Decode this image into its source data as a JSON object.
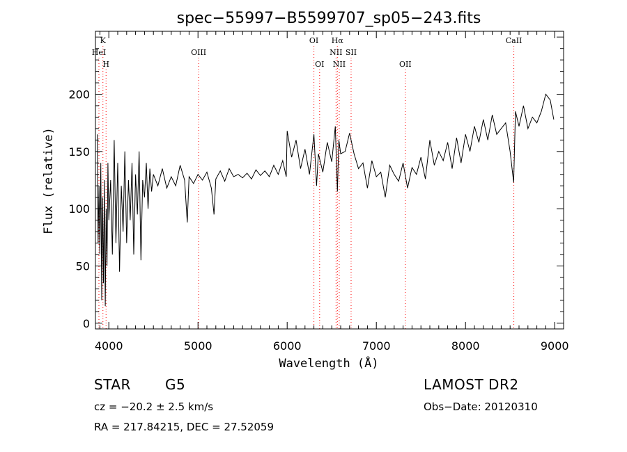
{
  "chart_data": {
    "type": "line",
    "title": "spec−55997−B5599707_sp05−243.fits",
    "xlabel": "Wavelength (Å)",
    "ylabel": "Flux (relative)",
    "xlim": [
      3850,
      9100
    ],
    "ylim": [
      -5,
      255
    ],
    "xticks": [
      4000,
      5000,
      6000,
      7000,
      8000,
      9000
    ],
    "yticks": [
      0,
      50,
      100,
      150,
      200
    ],
    "grid": false,
    "line_color": "#000000",
    "marker_color": "#ff0000",
    "series": [
      {
        "values_x": [
          3870,
          3880,
          3890,
          3900,
          3910,
          3920,
          3930,
          3940,
          3950,
          3960,
          3970,
          3980,
          3990,
          4000,
          4020,
          4040,
          4060,
          4080,
          4100,
          4120,
          4140,
          4160,
          4180,
          4200,
          4220,
          4240,
          4260,
          4280,
          4300,
          4320,
          4340,
          4360,
          4380,
          4400,
          4420,
          4440,
          4460,
          4480,
          4500,
          4550,
          4600,
          4650,
          4700,
          4750,
          4800,
          4850,
          4880,
          4900,
          4950,
          5000,
          5050,
          5100,
          5150,
          5180,
          5200,
          5250,
          5300,
          5350,
          5400,
          5450,
          5500,
          5550,
          5600,
          5650,
          5700,
          5750,
          5800,
          5850,
          5900,
          5950,
          5990,
          6000,
          6050,
          6100,
          6150,
          6200,
          6250,
          6300,
          6330,
          6350,
          6400,
          6450,
          6500,
          6540,
          6563,
          6580,
          6600,
          6650,
          6700,
          6750,
          6800,
          6850,
          6900,
          6950,
          7000,
          7050,
          7100,
          7150,
          7200,
          7250,
          7300,
          7350,
          7400,
          7450,
          7500,
          7550,
          7600,
          7650,
          7700,
          7750,
          7800,
          7850,
          7900,
          7950,
          8000,
          8050,
          8100,
          8150,
          8200,
          8250,
          8300,
          8350,
          8400,
          8450,
          8500,
          8540,
          8560,
          8600,
          8650,
          8700,
          8750,
          8800,
          8850,
          8900,
          8950,
          8990
        ],
        "values_y": [
          165,
          70,
          120,
          60,
          140,
          20,
          110,
          35,
          125,
          15,
          100,
          50,
          140,
          90,
          125,
          60,
          160,
          70,
          140,
          45,
          120,
          80,
          150,
          70,
          125,
          90,
          140,
          60,
          130,
          95,
          150,
          55,
          125,
          110,
          140,
          100,
          135,
          115,
          130,
          120,
          135,
          118,
          128,
          120,
          138,
          125,
          88,
          128,
          122,
          130,
          125,
          132,
          118,
          95,
          126,
          133,
          124,
          135,
          128,
          130,
          127,
          131,
          126,
          134,
          129,
          133,
          128,
          138,
          130,
          142,
          128,
          168,
          145,
          160,
          135,
          152,
          130,
          165,
          120,
          148,
          132,
          158,
          141,
          172,
          115,
          160,
          148,
          150,
          166,
          148,
          135,
          140,
          118,
          142,
          128,
          132,
          110,
          138,
          130,
          124,
          140,
          118,
          136,
          130,
          145,
          126,
          160,
          138,
          150,
          142,
          158,
          135,
          162,
          140,
          165,
          150,
          172,
          158,
          178,
          160,
          182,
          165,
          170,
          175,
          150,
          123,
          185,
          172,
          190,
          170,
          180,
          175,
          185,
          200,
          195,
          178
        ]
      }
    ],
    "line_markers": [
      {
        "label": "K",
        "x": 3934,
        "row": 0
      },
      {
        "label": "HeI",
        "x": 3889,
        "row": 1
      },
      {
        "label": "H",
        "x": 3969,
        "row": 2
      },
      {
        "label": "OIII",
        "x": 5007,
        "row": 1
      },
      {
        "label": "OI",
        "x": 6300,
        "row": 0
      },
      {
        "label": "OI",
        "x": 6364,
        "row": 2
      },
      {
        "label": "Hα",
        "x": 6563,
        "row": 0
      },
      {
        "label": "NII",
        "x": 6548,
        "row": 1
      },
      {
        "label": "SII",
        "x": 6717,
        "row": 1
      },
      {
        "label": "NII",
        "x": 6584,
        "row": 2
      },
      {
        "label": "OII",
        "x": 7325,
        "row": 2
      },
      {
        "label": "CaII",
        "x": 8542,
        "row": 0
      }
    ]
  },
  "footer": {
    "object_class": "STAR",
    "subclass": "G5",
    "survey": "LAMOST DR2",
    "redshift": "cz = −20.2 ± 2.5 km/s",
    "obs_date": "Obs−Date: 20120310",
    "coords": "RA = 217.84215, DEC =  27.52059"
  }
}
